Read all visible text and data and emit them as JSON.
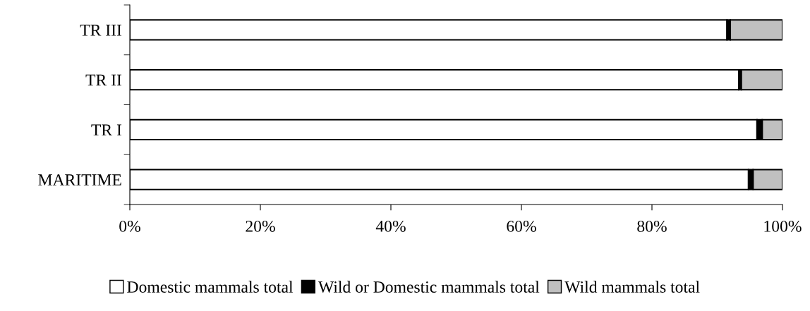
{
  "chart_data": {
    "type": "bar",
    "orientation": "horizontal",
    "stacked": true,
    "categories": [
      "TR III",
      "TR II",
      "TR I",
      "MARITIME"
    ],
    "series": [
      {
        "name": "Domestic mammals total",
        "color": "#ffffff",
        "values": [
          91.5,
          93.3,
          96.1,
          94.8
        ]
      },
      {
        "name": "Wild or Domestic mammals total",
        "color": "#000000",
        "values": [
          0.5,
          0.4,
          0.8,
          0.7
        ]
      },
      {
        "name": "Wild mammals total",
        "color": "#c0c0c0",
        "values": [
          8.0,
          6.3,
          3.1,
          4.5
        ]
      }
    ],
    "xlim": [
      0,
      100
    ],
    "xticks": [
      {
        "value": 0,
        "label": "0%"
      },
      {
        "value": 20,
        "label": "20%"
      },
      {
        "value": 40,
        "label": "40%"
      },
      {
        "value": 60,
        "label": "60%"
      },
      {
        "value": 80,
        "label": "80%"
      },
      {
        "value": 100,
        "label": "100%"
      }
    ],
    "grid": false,
    "legend": "bottom"
  }
}
